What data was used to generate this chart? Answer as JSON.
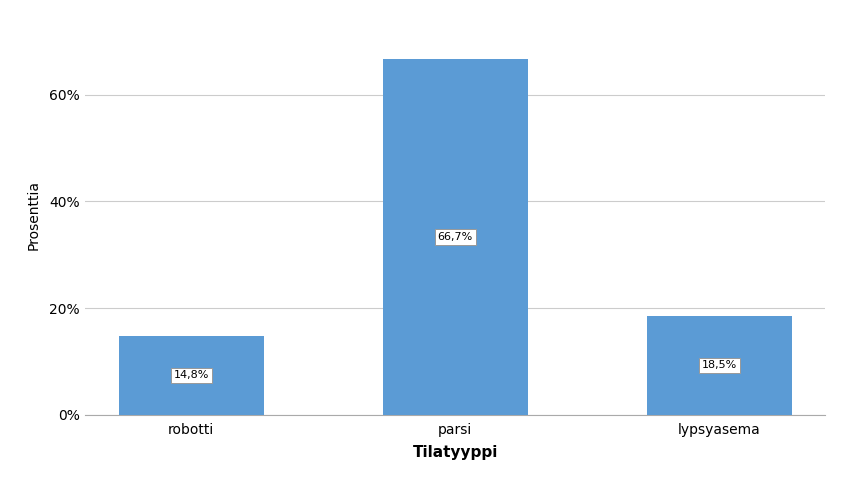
{
  "categories": [
    "robotti",
    "parsi",
    "lypsyasema"
  ],
  "values": [
    14.8,
    66.7,
    18.5
  ],
  "labels": [
    "14,8%",
    "66,7%",
    "18,5%"
  ],
  "bar_color": "#5b9bd5",
  "xlabel": "Tilatyyppi",
  "ylabel": "Prosenttia",
  "ylim": [
    0,
    75
  ],
  "yticks": [
    0,
    20,
    40,
    60
  ],
  "ytick_labels": [
    "0%",
    "20%",
    "40%",
    "60%"
  ],
  "background_color": "#ffffff",
  "grid_color": "#cccccc",
  "label_fontsize": 8,
  "tick_fontsize": 10,
  "xlabel_fontsize": 11,
  "ylabel_fontsize": 10,
  "bar_width": 0.55
}
